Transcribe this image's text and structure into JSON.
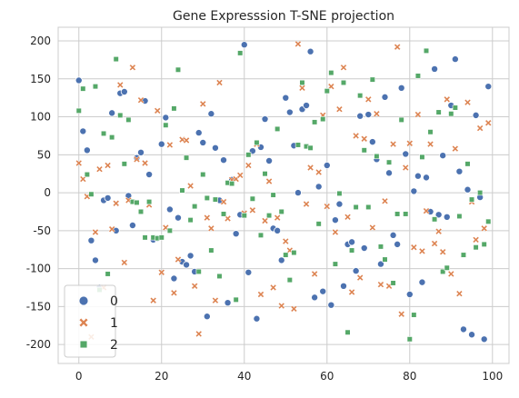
{
  "chart_data": {
    "type": "scatter",
    "title": "Gene Expresssion T-SNE projection",
    "xlabel": "",
    "ylabel": "",
    "xlim": [
      -5,
      104
    ],
    "ylim": [
      -225,
      218
    ],
    "xticks": [
      0,
      20,
      40,
      60,
      80,
      100
    ],
    "yticks": [
      -200,
      -150,
      -100,
      -50,
      0,
      50,
      100,
      150,
      200
    ],
    "grid": true,
    "legend": {
      "location": "lower-left",
      "entries": [
        "0",
        "1",
        "2"
      ]
    },
    "series": [
      {
        "name": "0",
        "marker": "circle",
        "color": "#4c72b0",
        "points": [
          [
            0,
            148
          ],
          [
            1,
            81
          ],
          [
            2,
            56
          ],
          [
            3,
            -63
          ],
          [
            4,
            -89
          ],
          [
            5,
            -125
          ],
          [
            6,
            -10
          ],
          [
            7,
            -7
          ],
          [
            8,
            105
          ],
          [
            9,
            -50
          ],
          [
            10,
            131
          ],
          [
            11,
            133
          ],
          [
            12,
            -4
          ],
          [
            13,
            -43
          ],
          [
            14,
            46
          ],
          [
            15,
            53
          ],
          [
            16,
            121
          ],
          [
            17,
            24
          ],
          [
            18,
            -62
          ],
          [
            19,
            -60
          ],
          [
            20,
            64
          ],
          [
            21,
            99
          ],
          [
            22,
            -22
          ],
          [
            23,
            -113
          ],
          [
            24,
            -33
          ],
          [
            25,
            -91
          ],
          [
            26,
            -95
          ],
          [
            27,
            -83
          ],
          [
            28,
            -104
          ],
          [
            29,
            79
          ],
          [
            30,
            66
          ],
          [
            31,
            -163
          ],
          [
            32,
            104
          ],
          [
            33,
            59
          ],
          [
            34,
            -10
          ],
          [
            35,
            43
          ],
          [
            36,
            -145
          ],
          [
            37,
            17
          ],
          [
            38,
            -54
          ],
          [
            39,
            -29
          ],
          [
            40,
            195
          ],
          [
            41,
            -105
          ],
          [
            42,
            55
          ],
          [
            43,
            -166
          ],
          [
            44,
            60
          ],
          [
            45,
            97
          ],
          [
            46,
            42
          ],
          [
            47,
            -47
          ],
          [
            48,
            -50
          ],
          [
            49,
            -89
          ],
          [
            50,
            125
          ],
          [
            51,
            106
          ],
          [
            52,
            62
          ],
          [
            53,
            0
          ],
          [
            54,
            110
          ],
          [
            55,
            115
          ],
          [
            56,
            186
          ],
          [
            57,
            -138
          ],
          [
            58,
            8
          ],
          [
            59,
            -130
          ],
          [
            60,
            36
          ],
          [
            61,
            -148
          ],
          [
            62,
            -36
          ],
          [
            63,
            -15
          ],
          [
            64,
            -123
          ],
          [
            65,
            -68
          ],
          [
            66,
            -65
          ],
          [
            67,
            -103
          ],
          [
            68,
            101
          ],
          [
            69,
            -73
          ],
          [
            70,
            103
          ],
          [
            71,
            67
          ],
          [
            72,
            44
          ],
          [
            73,
            -94
          ],
          [
            74,
            126
          ],
          [
            75,
            26
          ],
          [
            76,
            -56
          ],
          [
            77,
            -68
          ],
          [
            78,
            138
          ],
          [
            79,
            51
          ],
          [
            80,
            -134
          ],
          [
            81,
            2
          ],
          [
            82,
            22
          ],
          [
            83,
            -118
          ],
          [
            84,
            20
          ],
          [
            85,
            -25
          ],
          [
            86,
            163
          ],
          [
            87,
            -29
          ],
          [
            88,
            49
          ],
          [
            89,
            -32
          ],
          [
            90,
            115
          ],
          [
            91,
            176
          ],
          [
            92,
            28
          ],
          [
            93,
            -180
          ],
          [
            94,
            4
          ],
          [
            95,
            -187
          ],
          [
            96,
            102
          ],
          [
            97,
            -6
          ],
          [
            98,
            -193
          ],
          [
            99,
            140
          ]
        ]
      },
      {
        "name": "1",
        "marker": "x",
        "color": "#dd8452",
        "points": [
          [
            0,
            39
          ],
          [
            1,
            18
          ],
          [
            2,
            -5
          ],
          [
            3,
            -190
          ],
          [
            4,
            -52
          ],
          [
            5,
            31
          ],
          [
            6,
            -125
          ],
          [
            7,
            36
          ],
          [
            8,
            -48
          ],
          [
            9,
            -14
          ],
          [
            10,
            142
          ],
          [
            11,
            -92
          ],
          [
            12,
            -10
          ],
          [
            13,
            165
          ],
          [
            14,
            44
          ],
          [
            15,
            122
          ],
          [
            16,
            39
          ],
          [
            17,
            -16
          ],
          [
            18,
            -142
          ],
          [
            19,
            108
          ],
          [
            20,
            -105
          ],
          [
            21,
            -46
          ],
          [
            22,
            63
          ],
          [
            23,
            -132
          ],
          [
            24,
            -88
          ],
          [
            25,
            70
          ],
          [
            26,
            69
          ],
          [
            27,
            9
          ],
          [
            28,
            -123
          ],
          [
            29,
            -186
          ],
          [
            30,
            117
          ],
          [
            31,
            -33
          ],
          [
            32,
            -47
          ],
          [
            33,
            -142
          ],
          [
            34,
            145
          ],
          [
            35,
            -12
          ],
          [
            36,
            -34
          ],
          [
            37,
            17
          ],
          [
            38,
            18
          ],
          [
            39,
            23
          ],
          [
            40,
            -27
          ],
          [
            41,
            36
          ],
          [
            42,
            -23
          ],
          [
            43,
            64
          ],
          [
            44,
            -134
          ],
          [
            45,
            -37
          ],
          [
            46,
            15
          ],
          [
            47,
            -125
          ],
          [
            48,
            -33
          ],
          [
            49,
            -149
          ],
          [
            50,
            -64
          ],
          [
            51,
            -76
          ],
          [
            52,
            -153
          ],
          [
            53,
            196
          ],
          [
            54,
            138
          ],
          [
            55,
            -15
          ],
          [
            56,
            33
          ],
          [
            57,
            -107
          ],
          [
            58,
            27
          ],
          [
            59,
            102
          ],
          [
            60,
            -18
          ],
          [
            61,
            140
          ],
          [
            62,
            -52
          ],
          [
            63,
            110
          ],
          [
            64,
            165
          ],
          [
            65,
            -32
          ],
          [
            66,
            -131
          ],
          [
            67,
            75
          ],
          [
            68,
            -112
          ],
          [
            69,
            71
          ],
          [
            70,
            123
          ],
          [
            71,
            -46
          ],
          [
            72,
            104
          ],
          [
            73,
            -121
          ],
          [
            74,
            -11
          ],
          [
            75,
            -123
          ],
          [
            76,
            64
          ],
          [
            77,
            192
          ],
          [
            78,
            -160
          ],
          [
            79,
            33
          ],
          [
            80,
            65
          ],
          [
            81,
            -72
          ],
          [
            82,
            103
          ],
          [
            83,
            -77
          ],
          [
            84,
            -24
          ],
          [
            85,
            64
          ],
          [
            86,
            -67
          ],
          [
            87,
            -51
          ],
          [
            88,
            -78
          ],
          [
            89,
            123
          ],
          [
            90,
            -107
          ],
          [
            91,
            58
          ],
          [
            92,
            -133
          ],
          [
            93,
            -82
          ],
          [
            94,
            119
          ],
          [
            95,
            -12
          ],
          [
            96,
            -62
          ],
          [
            97,
            85
          ],
          [
            98,
            -47
          ],
          [
            99,
            92
          ]
        ]
      },
      {
        "name": "2",
        "marker": "square",
        "color": "#55a868",
        "points": [
          [
            0,
            108
          ],
          [
            1,
            137
          ],
          [
            2,
            24
          ],
          [
            3,
            -2
          ],
          [
            4,
            140
          ],
          [
            5,
            -128
          ],
          [
            6,
            78
          ],
          [
            7,
            -107
          ],
          [
            8,
            73
          ],
          [
            9,
            176
          ],
          [
            10,
            102
          ],
          [
            11,
            38
          ],
          [
            12,
            96
          ],
          [
            13,
            -12
          ],
          [
            14,
            -13
          ],
          [
            15,
            -25
          ],
          [
            16,
            -59
          ],
          [
            17,
            -12
          ],
          [
            18,
            -59
          ],
          [
            19,
            -60
          ],
          [
            20,
            -59
          ],
          [
            21,
            89
          ],
          [
            22,
            -50
          ],
          [
            23,
            111
          ],
          [
            24,
            162
          ],
          [
            25,
            3
          ],
          [
            26,
            46
          ],
          [
            27,
            -36
          ],
          [
            28,
            -18
          ],
          [
            29,
            -104
          ],
          [
            30,
            24
          ],
          [
            31,
            -7
          ],
          [
            32,
            -76
          ],
          [
            33,
            -9
          ],
          [
            34,
            -110
          ],
          [
            35,
            -28
          ],
          [
            36,
            13
          ],
          [
            37,
            12
          ],
          [
            38,
            -141
          ],
          [
            39,
            184
          ],
          [
            40,
            -30
          ],
          [
            41,
            50
          ],
          [
            42,
            -8
          ],
          [
            43,
            66
          ],
          [
            44,
            -56
          ],
          [
            45,
            25
          ],
          [
            46,
            -30
          ],
          [
            47,
            -3
          ],
          [
            48,
            84
          ],
          [
            49,
            -25
          ],
          [
            50,
            -82
          ],
          [
            51,
            -115
          ],
          [
            52,
            -79
          ],
          [
            53,
            63
          ],
          [
            54,
            145
          ],
          [
            55,
            61
          ],
          [
            56,
            59
          ],
          [
            57,
            93
          ],
          [
            58,
            -41
          ],
          [
            59,
            97
          ],
          [
            60,
            134
          ],
          [
            61,
            158
          ],
          [
            62,
            -94
          ],
          [
            63,
            -1
          ],
          [
            64,
            145
          ],
          [
            65,
            -184
          ],
          [
            66,
            -76
          ],
          [
            67,
            -19
          ],
          [
            68,
            128
          ],
          [
            69,
            56
          ],
          [
            70,
            -19
          ],
          [
            71,
            149
          ],
          [
            72,
            48
          ],
          [
            73,
            -71
          ],
          [
            74,
            -88
          ],
          [
            75,
            40
          ],
          [
            76,
            -119
          ],
          [
            77,
            -28
          ],
          [
            78,
            96
          ],
          [
            79,
            -28
          ],
          [
            80,
            -193
          ],
          [
            81,
            -161
          ],
          [
            82,
            154
          ],
          [
            83,
            47
          ],
          [
            84,
            187
          ],
          [
            85,
            80
          ],
          [
            86,
            -35
          ],
          [
            87,
            106
          ],
          [
            88,
            -104
          ],
          [
            89,
            -99
          ],
          [
            90,
            104
          ],
          [
            91,
            112
          ],
          [
            92,
            -31
          ],
          [
            93,
            -82
          ],
          [
            94,
            38
          ],
          [
            95,
            -9
          ],
          [
            96,
            -72
          ],
          [
            97,
            0
          ],
          [
            98,
            -68
          ],
          [
            99,
            -38
          ]
        ]
      }
    ]
  }
}
